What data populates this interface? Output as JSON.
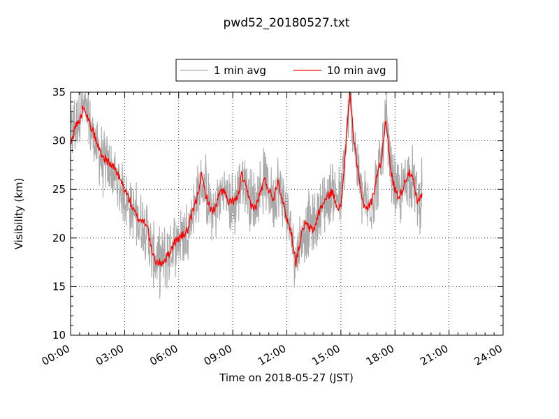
{
  "chart_data": {
    "type": "line",
    "title": "pwd52_20180527.txt",
    "xlabel": "Time on 2018-05-27 (JST)",
    "ylabel": "Visibility (km)",
    "xlim_hours": [
      0,
      24
    ],
    "ylim": [
      10,
      35
    ],
    "xticks": [
      {
        "value": 0,
        "label": "00:00"
      },
      {
        "value": 3,
        "label": "03:00"
      },
      {
        "value": 6,
        "label": "06:00"
      },
      {
        "value": 9,
        "label": "09:00"
      },
      {
        "value": 12,
        "label": "12:00"
      },
      {
        "value": 15,
        "label": "15:00"
      },
      {
        "value": 18,
        "label": "18:00"
      },
      {
        "value": 21,
        "label": "21:00"
      },
      {
        "value": 24,
        "label": "24:00"
      }
    ],
    "yticks": [
      {
        "value": 10,
        "label": "10"
      },
      {
        "value": 15,
        "label": "15"
      },
      {
        "value": 20,
        "label": "20"
      },
      {
        "value": 25,
        "label": "25"
      },
      {
        "value": 30,
        "label": "30"
      },
      {
        "value": 35,
        "label": "35"
      }
    ],
    "grid": true,
    "legend_position": "top-center",
    "series": [
      {
        "name": "1 min avg",
        "color": "#a9a9a9",
        "x_hours": [
          0.0,
          0.25,
          0.5,
          0.75,
          1.0,
          1.25,
          1.5,
          1.75,
          2.0,
          2.25,
          2.5,
          2.75,
          3.0,
          3.25,
          3.5,
          3.75,
          4.0,
          4.25,
          4.5,
          4.75,
          5.0,
          5.25,
          5.5,
          5.75,
          6.0,
          6.25,
          6.5,
          6.75,
          7.0,
          7.25,
          7.5,
          7.75,
          8.0,
          8.25,
          8.5,
          8.75,
          9.0,
          9.25,
          9.5,
          9.75,
          10.0,
          10.25,
          10.5,
          10.75,
          11.0,
          11.25,
          11.5,
          11.75,
          12.0,
          12.25,
          12.5,
          12.75,
          13.0,
          13.25,
          13.5,
          13.75,
          14.0,
          14.25,
          14.5,
          14.75,
          15.0,
          15.25,
          15.5,
          15.75,
          16.0,
          16.25,
          16.5,
          16.75,
          17.0,
          17.25,
          17.5,
          17.75,
          18.0,
          18.25,
          18.5,
          18.75,
          19.0,
          19.25,
          19.5
        ],
        "values": [
          30.5,
          31.5,
          33.0,
          33.5,
          32.0,
          30.5,
          29.0,
          28.0,
          27.5,
          27.0,
          26.0,
          25.0,
          24.5,
          23.5,
          22.5,
          22.0,
          21.5,
          21.0,
          18.5,
          17.5,
          17.5,
          18.0,
          18.5,
          19.5,
          20.0,
          20.5,
          21.0,
          22.5,
          24.0,
          25.5,
          25.0,
          23.0,
          22.5,
          24.0,
          25.0,
          24.0,
          23.0,
          24.5,
          26.0,
          25.5,
          24.0,
          23.5,
          25.0,
          26.0,
          25.0,
          24.0,
          25.5,
          24.5,
          22.0,
          20.5,
          18.0,
          19.5,
          21.0,
          21.5,
          21.0,
          22.5,
          23.5,
          24.0,
          25.0,
          24.5,
          23.5,
          29.0,
          34.0,
          30.0,
          26.0,
          24.0,
          23.0,
          24.0,
          26.0,
          28.0,
          32.0,
          27.0,
          25.0,
          24.0,
          25.5,
          26.5,
          26.0,
          24.0,
          24.5
        ]
      },
      {
        "name": "10 min avg",
        "color": "#ff0000",
        "x_hours": [
          0.0,
          0.25,
          0.5,
          0.75,
          1.0,
          1.25,
          1.5,
          1.75,
          2.0,
          2.25,
          2.5,
          2.75,
          3.0,
          3.25,
          3.5,
          3.75,
          4.0,
          4.25,
          4.5,
          4.75,
          5.0,
          5.25,
          5.5,
          5.75,
          6.0,
          6.25,
          6.5,
          6.75,
          7.0,
          7.25,
          7.5,
          7.75,
          8.0,
          8.25,
          8.5,
          8.75,
          9.0,
          9.25,
          9.5,
          9.75,
          10.0,
          10.25,
          10.5,
          10.75,
          11.0,
          11.25,
          11.5,
          11.75,
          12.0,
          12.25,
          12.5,
          12.75,
          13.0,
          13.25,
          13.5,
          13.75,
          14.0,
          14.25,
          14.5,
          14.75,
          15.0,
          15.25,
          15.5,
          15.75,
          16.0,
          16.25,
          16.5,
          16.75,
          17.0,
          17.25,
          17.5,
          17.75,
          18.0,
          18.25,
          18.5,
          18.75,
          19.0,
          19.25,
          19.5
        ],
        "values": [
          29.5,
          31.5,
          32.0,
          33.8,
          32.0,
          31.0,
          29.5,
          28.5,
          28.0,
          27.5,
          27.0,
          26.0,
          25.0,
          24.0,
          22.8,
          22.0,
          21.8,
          21.5,
          18.5,
          17.5,
          17.4,
          17.8,
          18.5,
          19.5,
          20.0,
          20.3,
          20.8,
          22.5,
          24.0,
          26.5,
          24.5,
          23.0,
          22.8,
          24.5,
          25.0,
          23.5,
          23.8,
          24.0,
          26.5,
          25.0,
          23.5,
          23.0,
          24.5,
          26.0,
          25.0,
          24.0,
          26.0,
          24.0,
          22.0,
          20.5,
          17.5,
          19.8,
          21.5,
          21.0,
          20.8,
          22.5,
          23.5,
          24.2,
          24.8,
          23.5,
          23.0,
          29.0,
          35.0,
          29.5,
          26.0,
          23.5,
          23.0,
          24.0,
          26.5,
          28.0,
          32.5,
          27.0,
          25.0,
          24.2,
          25.5,
          26.8,
          26.0,
          23.5,
          24.5
        ]
      }
    ]
  }
}
